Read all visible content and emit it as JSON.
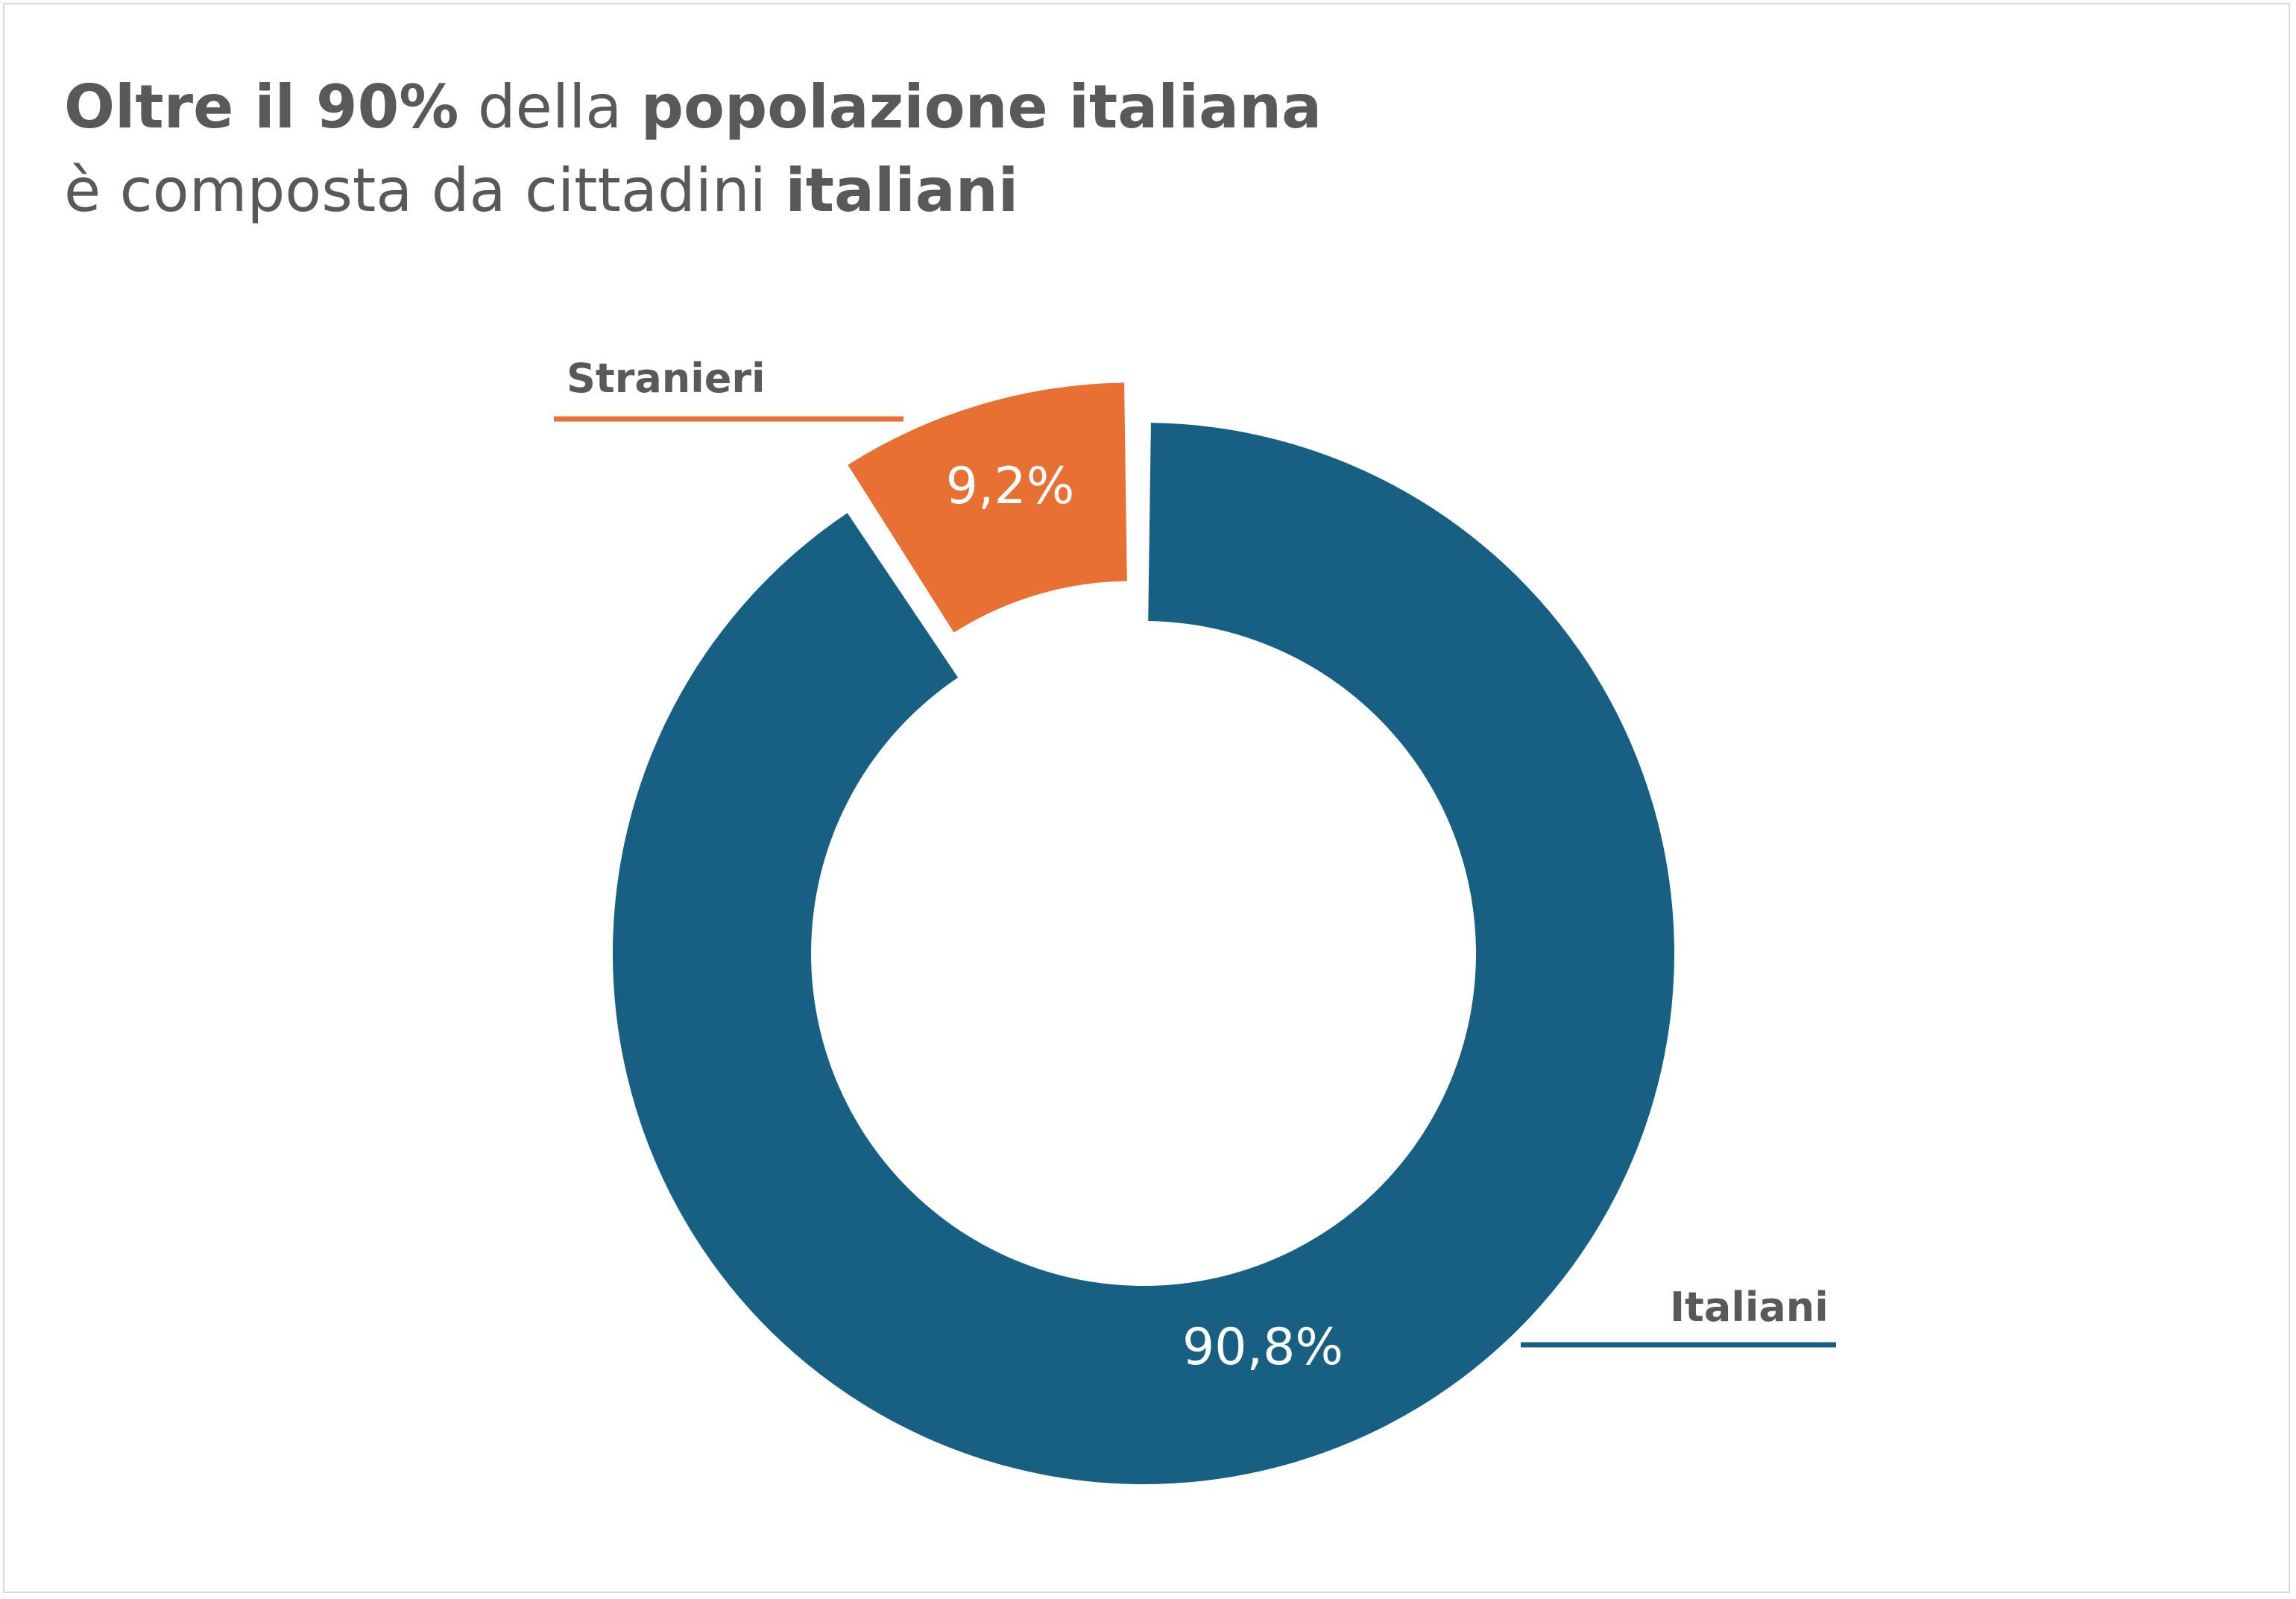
{
  "title": {
    "line1": [
      {
        "text": "Oltre il 90%",
        "bold": true
      },
      {
        "text": " della ",
        "bold": false
      },
      {
        "text": "popolazione italiana",
        "bold": true
      }
    ],
    "line2": [
      {
        "text": "è composta da cittadini ",
        "bold": false
      },
      {
        "text": "italiani",
        "bold": true
      }
    ]
  },
  "chart_data": {
    "type": "pie",
    "variant": "donut",
    "categories": [
      "Italiani",
      "Stranieri"
    ],
    "values": [
      90.8,
      9.2
    ],
    "value_labels": [
      "90,8%",
      "9,2%"
    ],
    "colors": [
      "#176083",
      "#e87033"
    ],
    "exploded": "Stranieri",
    "legend": "none"
  }
}
